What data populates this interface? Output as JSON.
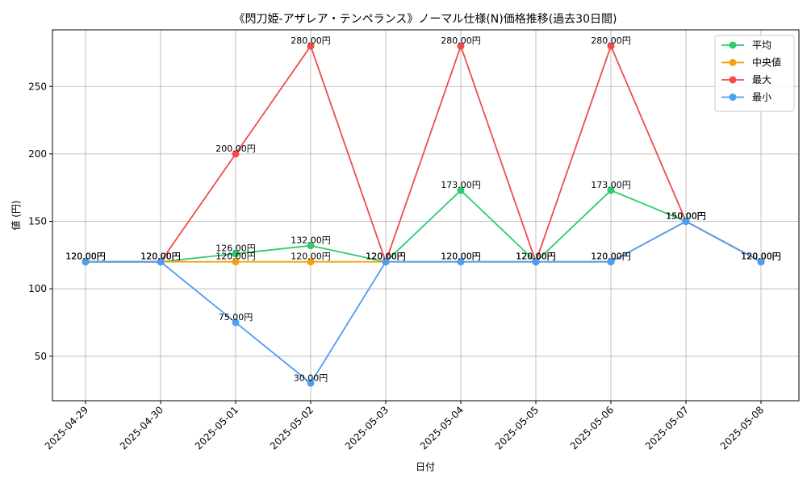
{
  "chart_data": {
    "type": "line",
    "title": "《閃刀姫-アザレア・テンペランス》ノーマル仕様(N)価格推移(過去30日間)",
    "xlabel": "日付",
    "ylabel": "値 (円)",
    "categories": [
      "2025-04-29",
      "2025-04-30",
      "2025-05-01",
      "2025-05-02",
      "2025-05-03",
      "2025-05-04",
      "2025-05-05",
      "2025-05-06",
      "2025-05-07",
      "2025-05-08"
    ],
    "ylim": [
      17,
      292
    ],
    "yticks": [
      50,
      100,
      150,
      200,
      250
    ],
    "grid": true,
    "legend_position": "top-right",
    "value_suffix": "円",
    "series": [
      {
        "name": "平均",
        "color": "#2ecc71",
        "values": [
          120,
          120,
          126,
          132,
          120,
          173,
          120,
          173,
          150,
          120
        ]
      },
      {
        "name": "中央値",
        "color": "#f5a00f",
        "values": [
          120,
          120,
          120,
          120,
          120,
          120,
          120,
          120,
          150,
          120
        ]
      },
      {
        "name": "最大",
        "color": "#f04b4b",
        "values": [
          120,
          120,
          200,
          280,
          120,
          280,
          120,
          280,
          150,
          120
        ]
      },
      {
        "name": "最小",
        "color": "#4d9df5",
        "values": [
          120,
          120,
          75,
          30,
          120,
          120,
          120,
          120,
          150,
          120
        ]
      }
    ]
  }
}
